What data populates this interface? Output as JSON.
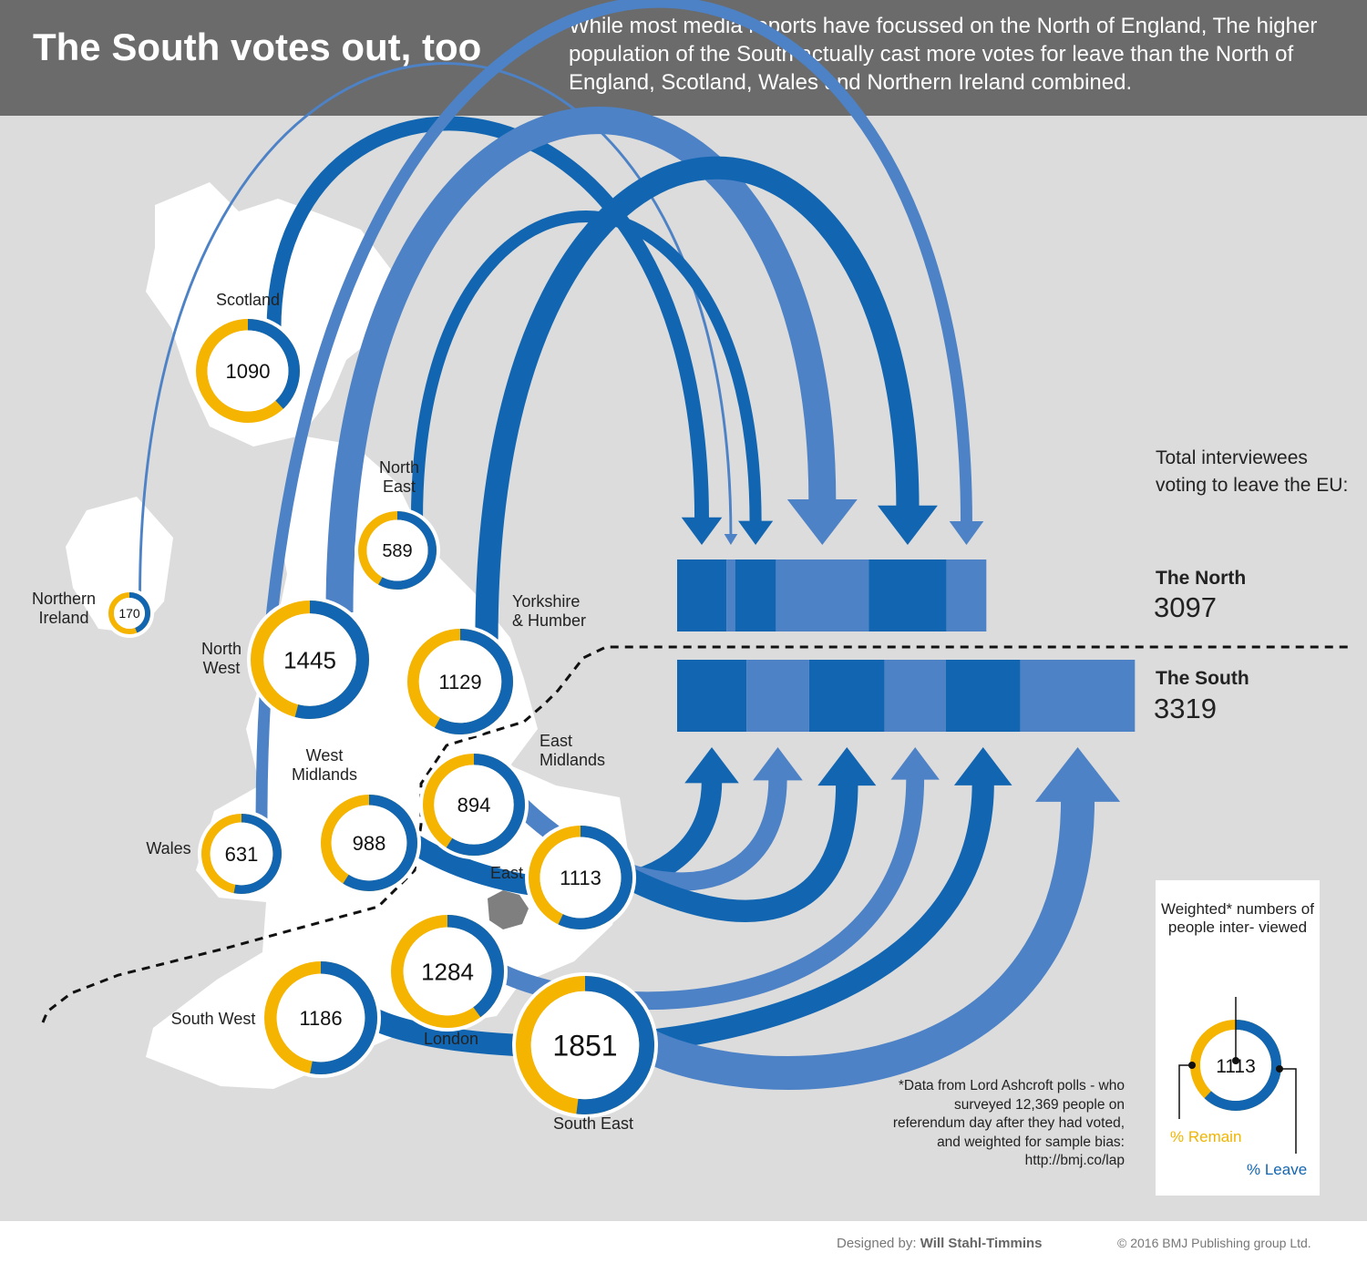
{
  "header": {
    "title": "The South votes out, too",
    "subtitle": "While most media reports have focussed on the North of England, The higher population of the South actually cast more votes for leave than the North of England, Scotland, Wales and Northern Ireland combined."
  },
  "colors": {
    "leave": "#1266b1",
    "leave_light": "#4d82c6",
    "remain": "#f5b400",
    "panel": "#dcdcdc",
    "land": "#ffffff",
    "london": "#7f7f7f"
  },
  "regions": [
    {
      "name": "Scotland",
      "value": "1090",
      "group": "north",
      "leave_pct": 38
    },
    {
      "name": "Northern Ireland",
      "value": "170",
      "group": "north",
      "leave_pct": 44
    },
    {
      "name": "North East",
      "value": "589",
      "group": "north",
      "leave_pct": 58
    },
    {
      "name": "North West",
      "value": "1445",
      "group": "north",
      "leave_pct": 54
    },
    {
      "name": "Yorkshire & Humber",
      "value": "1129",
      "group": "north",
      "leave_pct": 58
    },
    {
      "name": "Wales",
      "value": "631",
      "group": "north",
      "leave_pct": 53
    },
    {
      "name": "West Midlands",
      "value": "988",
      "group": "south",
      "leave_pct": 59
    },
    {
      "name": "East Midlands",
      "value": "894",
      "group": "south",
      "leave_pct": 59
    },
    {
      "name": "East",
      "value": "1113",
      "group": "south",
      "leave_pct": 57
    },
    {
      "name": "London",
      "value": "1284",
      "group": "south",
      "leave_pct": 40
    },
    {
      "name": "South West",
      "value": "1186",
      "group": "south",
      "leave_pct": 53
    },
    {
      "name": "South East",
      "value": "1851",
      "group": "south",
      "leave_pct": 52
    }
  ],
  "totals": {
    "label": "Total interviewees voting to leave the EU:",
    "north_label": "The North",
    "north_value": "3097",
    "south_label": "The South",
    "south_value": "3319"
  },
  "legend": {
    "title": "Weighted* numbers of people inter- viewed",
    "example_value": "1113",
    "remain_label": "% Remain",
    "leave_label": "% Leave"
  },
  "footnote": "*Data from Lord Ashcroft polls - who surveyed 12,369 people on referendum day after they had voted, and weighted for sample bias: http://bmj.co/lap",
  "footer": {
    "designed_by_label": "Designed by:",
    "designer": "Will Stahl-Timmins",
    "copyright": "© 2016 BMJ Publishing group Ltd."
  }
}
